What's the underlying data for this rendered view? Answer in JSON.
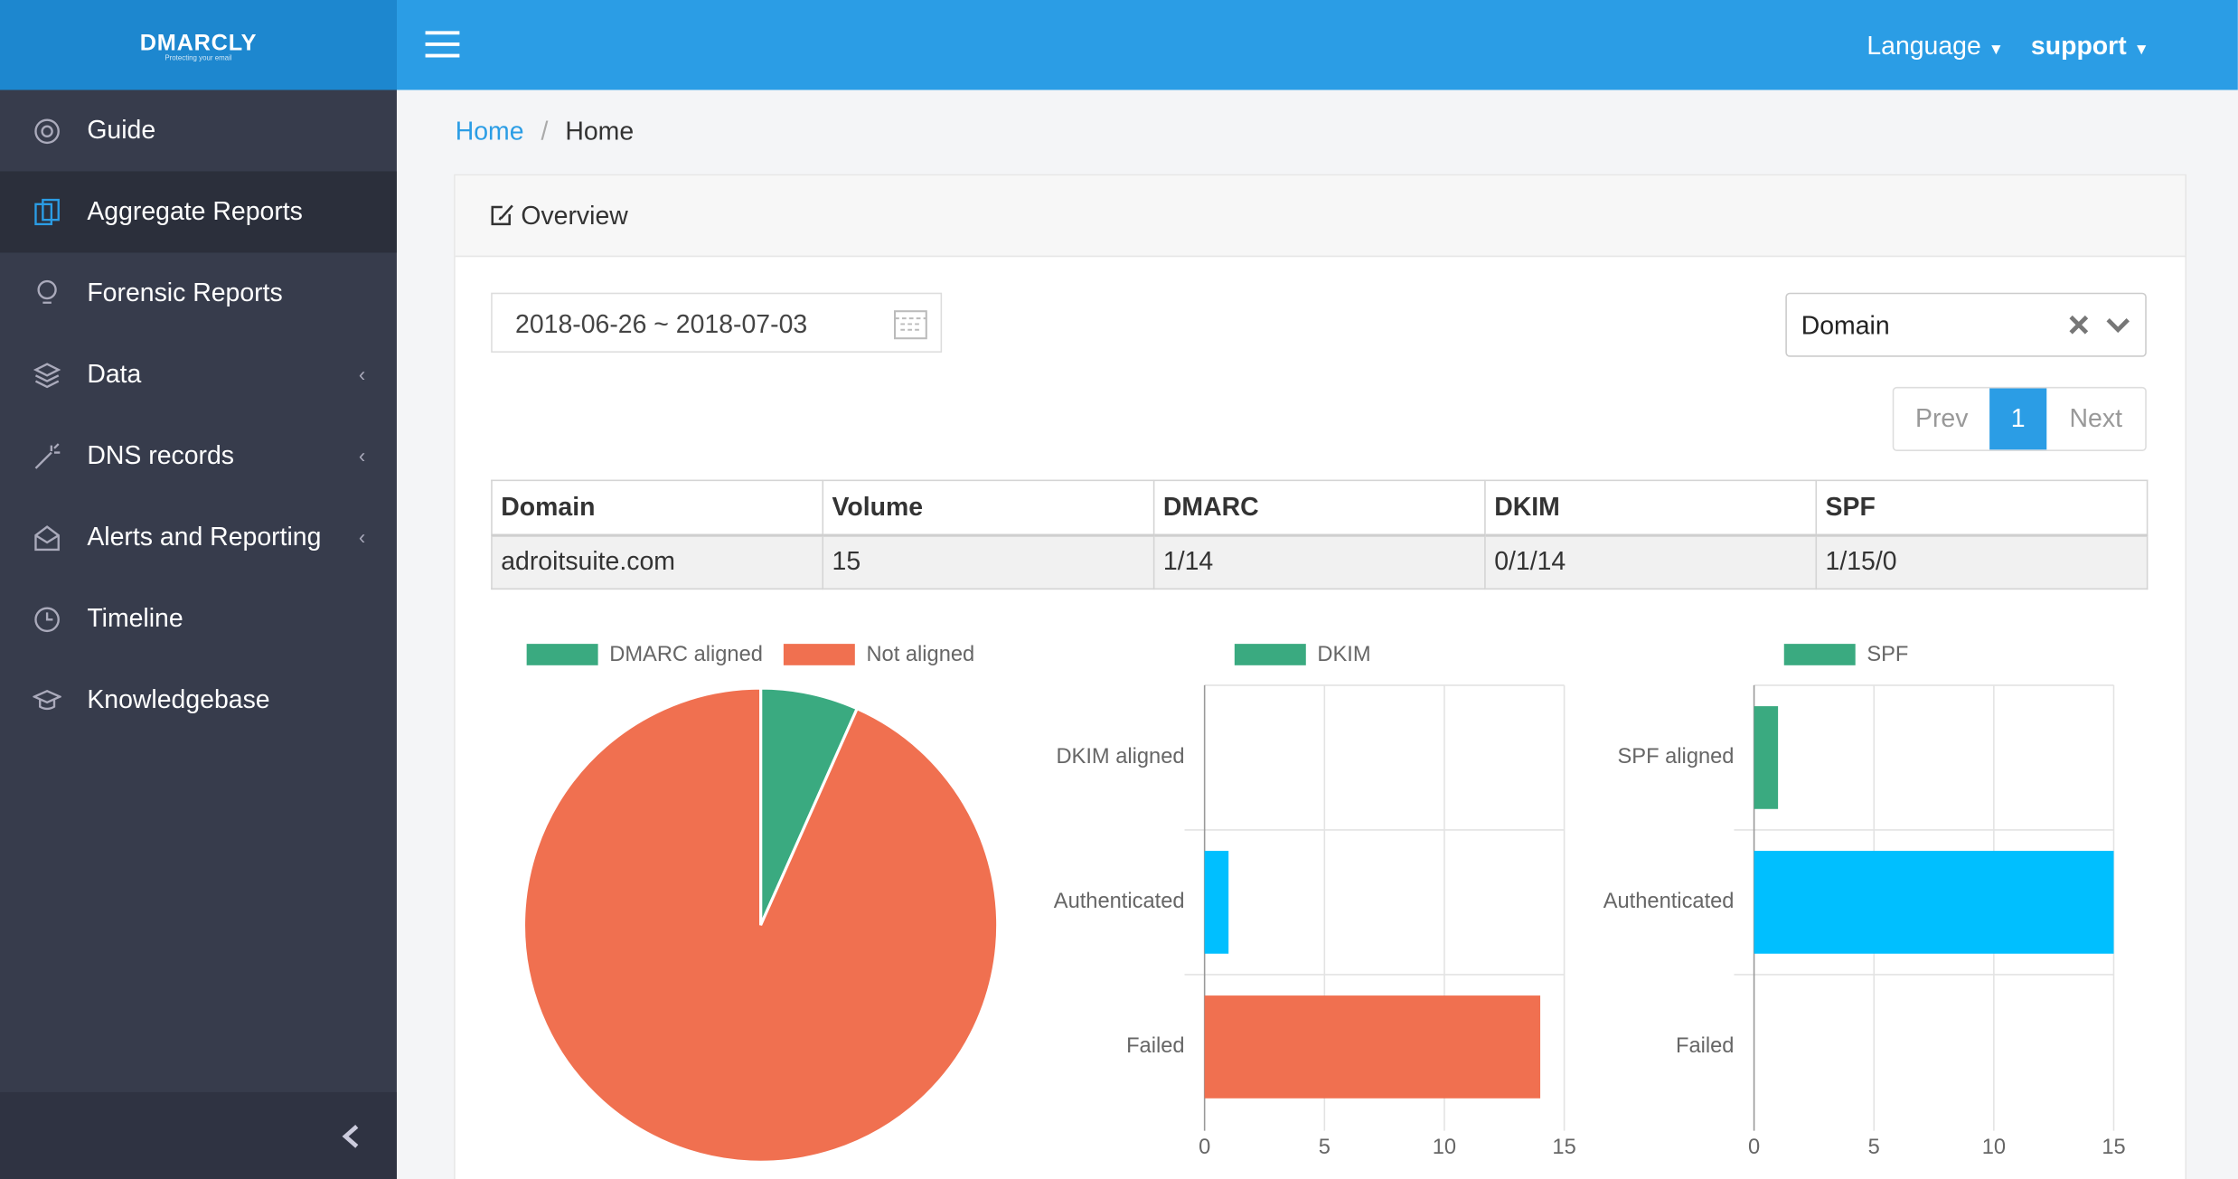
{
  "logo": {
    "name": "DMARCLY",
    "tagline": "Protecting your email"
  },
  "sidebar": [
    "Guide",
    "Aggregate Reports",
    "Forensic Reports",
    "Data",
    "DNS records",
    "Alerts and Reporting",
    "Timeline",
    "Knowledgebase"
  ],
  "header": {
    "language": "Language",
    "user": "support"
  },
  "breadcrumb": [
    "Home",
    "Home"
  ],
  "card_title": "Overview",
  "date_range": "2018-06-26 ~ 2018-07-03",
  "domain_select": "Domain",
  "pagination": [
    "Prev",
    "1",
    "Next"
  ],
  "table": {
    "header": [
      "Domain",
      "Volume",
      "DMARC",
      "DKIM",
      "SPF"
    ],
    "rows": [
      [
        "adroitsuite.com",
        15,
        "1/14",
        "0/1/14",
        "1/15/0"
      ]
    ]
  },
  "chart_data": [
    {
      "type": "pie",
      "categories": [
        "DMARC aligned",
        "Not aligned"
      ],
      "values": [
        1,
        14
      ],
      "colors": [
        "#3aaa80",
        "#f07050"
      ]
    },
    {
      "type": "bar",
      "orientation": "horizontal",
      "categories": [
        "DKIM aligned",
        "Authenticated",
        "Failed"
      ],
      "series": [
        {
          "name": "DKIM",
          "color": "#3aaa80",
          "values": [
            0,
            1,
            14
          ]
        }
      ],
      "bar_colors": [
        "#3aaa80",
        "#00bfff",
        "#f07050"
      ],
      "xlim": [
        0,
        15
      ],
      "xticks": [
        0,
        5,
        10,
        15
      ],
      "grid": true
    },
    {
      "type": "bar",
      "orientation": "horizontal",
      "categories": [
        "SPF aligned",
        "Authenticated",
        "Failed"
      ],
      "series": [
        {
          "name": "SPF",
          "color": "#3aaa80",
          "values": [
            1,
            15,
            0
          ]
        }
      ],
      "bar_colors": [
        "#3aaa80",
        "#00bfff",
        "#f07050"
      ],
      "xlim": [
        0,
        15
      ],
      "xticks": [
        0,
        5,
        10,
        15
      ],
      "grid": true
    }
  ]
}
